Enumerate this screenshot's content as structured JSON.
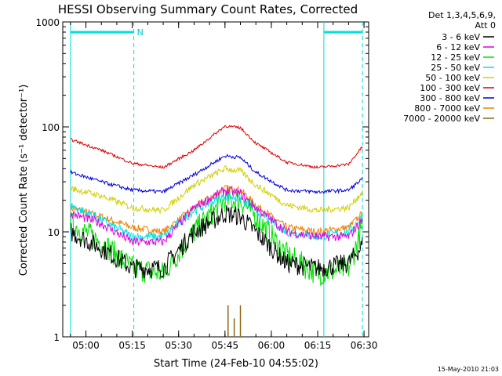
{
  "chart_data": {
    "type": "line",
    "title": "HESSI Observing Summary Count Rates, Corrected",
    "xlabel": "Start Time (24-Feb-10 04:55:02)",
    "ylabel": "Corrected Count Rate (s⁻¹ detector⁻¹)",
    "yscale": "log",
    "ylim": [
      1,
      1000
    ],
    "xlim_minutes": [
      -2.5,
      96.5
    ],
    "x_tick_labels": [
      "05:00",
      "05:15",
      "05:30",
      "05:45",
      "06:00",
      "06:15",
      "06:30"
    ],
    "y_tick_labels": [
      "1",
      "10",
      "100",
      "1000"
    ],
    "legend_header": [
      "Det 1,3,4,5,6,9,",
      "Att 0"
    ],
    "legend_placement": "right",
    "timestamp": "15-May-2010 21:03",
    "night_marker_label": "N",
    "shade_markers": [
      {
        "start": 0,
        "end": 20.5
      },
      {
        "start": 82,
        "end": 94.5
      }
    ],
    "series": [
      {
        "name": "3 - 6 keV",
        "color": "#000000",
        "points": [
          [
            0,
            10
          ],
          [
            10,
            7
          ],
          [
            20,
            4.5
          ],
          [
            30,
            4.5
          ],
          [
            40,
            10
          ],
          [
            50,
            15
          ],
          [
            55,
            14
          ],
          [
            60,
            10
          ],
          [
            70,
            5
          ],
          [
            80,
            4.5
          ],
          [
            90,
            5
          ],
          [
            94.5,
            7.5
          ]
        ]
      },
      {
        "name": "6 - 12 keV",
        "color": "#e000e0",
        "points": [
          [
            0,
            15
          ],
          [
            10,
            12
          ],
          [
            20,
            8
          ],
          [
            30,
            8
          ],
          [
            40,
            17
          ],
          [
            50,
            25
          ],
          [
            55,
            23
          ],
          [
            60,
            17
          ],
          [
            70,
            10
          ],
          [
            80,
            9
          ],
          [
            90,
            9
          ],
          [
            94.5,
            13
          ]
        ]
      },
      {
        "name": "12 - 25 keV",
        "color": "#00e000",
        "points": [
          [
            0,
            12
          ],
          [
            10,
            8
          ],
          [
            20,
            4.5
          ],
          [
            30,
            4
          ],
          [
            40,
            10
          ],
          [
            50,
            20
          ],
          [
            55,
            20
          ],
          [
            60,
            14
          ],
          [
            70,
            6
          ],
          [
            80,
            4
          ],
          [
            90,
            4.5
          ],
          [
            94.5,
            11
          ]
        ]
      },
      {
        "name": "25 - 50 keV",
        "color": "#00e0e0",
        "points": [
          [
            0,
            18
          ],
          [
            10,
            13
          ],
          [
            20,
            9
          ],
          [
            30,
            9
          ],
          [
            40,
            16
          ],
          [
            50,
            22
          ],
          [
            55,
            21
          ],
          [
            60,
            16
          ],
          [
            70,
            10
          ],
          [
            80,
            9
          ],
          [
            90,
            10
          ],
          [
            94.5,
            14
          ]
        ]
      },
      {
        "name": "50 - 100 keV",
        "color": "#d0d000",
        "points": [
          [
            0,
            26
          ],
          [
            10,
            22
          ],
          [
            20,
            17
          ],
          [
            30,
            16
          ],
          [
            40,
            28
          ],
          [
            50,
            40
          ],
          [
            55,
            38
          ],
          [
            60,
            28
          ],
          [
            70,
            18
          ],
          [
            80,
            16
          ],
          [
            90,
            17
          ],
          [
            94.5,
            24
          ]
        ]
      },
      {
        "name": "100 - 300 keV",
        "color": "#e00000",
        "points": [
          [
            0,
            76
          ],
          [
            10,
            60
          ],
          [
            20,
            45
          ],
          [
            30,
            41
          ],
          [
            40,
            60
          ],
          [
            50,
            102
          ],
          [
            55,
            98
          ],
          [
            60,
            70
          ],
          [
            70,
            46
          ],
          [
            80,
            41
          ],
          [
            90,
            44
          ],
          [
            94.5,
            65
          ]
        ]
      },
      {
        "name": "300 - 800 keV",
        "color": "#0000e0",
        "points": [
          [
            0,
            37
          ],
          [
            10,
            30
          ],
          [
            20,
            25
          ],
          [
            30,
            24
          ],
          [
            40,
            35
          ],
          [
            50,
            53
          ],
          [
            55,
            51
          ],
          [
            60,
            37
          ],
          [
            70,
            25
          ],
          [
            80,
            24
          ],
          [
            90,
            25
          ],
          [
            94.5,
            32
          ]
        ]
      },
      {
        "name": "800 - 7000 keV",
        "color": "#f08000",
        "points": [
          [
            0,
            17
          ],
          [
            10,
            14
          ],
          [
            20,
            11
          ],
          [
            30,
            10
          ],
          [
            40,
            17
          ],
          [
            50,
            26
          ],
          [
            55,
            25
          ],
          [
            60,
            18
          ],
          [
            70,
            11
          ],
          [
            80,
            10
          ],
          [
            90,
            11
          ],
          [
            94.5,
            15
          ]
        ]
      },
      {
        "name": "7000 - 20000 keV",
        "color": "#8b6914",
        "points": [
          [
            50,
            1
          ],
          [
            51,
            2
          ],
          [
            51.5,
            1
          ],
          [
            53,
            1.5
          ],
          [
            53.5,
            1
          ],
          [
            55,
            2
          ],
          [
            55.5,
            1
          ]
        ]
      }
    ]
  }
}
